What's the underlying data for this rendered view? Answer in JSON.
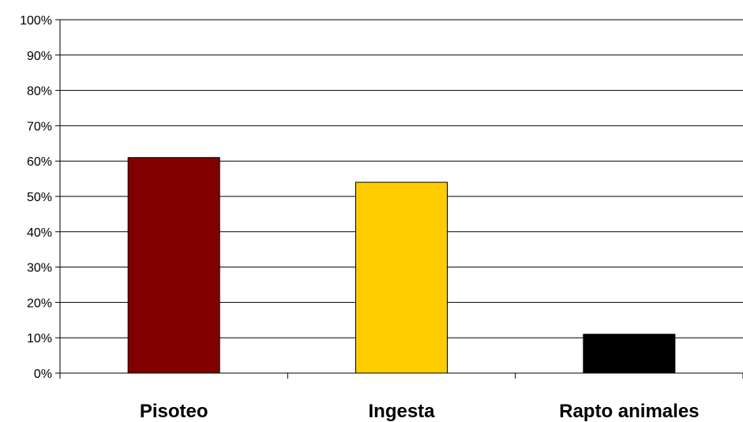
{
  "chart_data": {
    "type": "bar",
    "categories": [
      "Pisoteo",
      "Ingesta",
      "Rapto animales"
    ],
    "values": [
      61,
      54,
      11
    ],
    "colors": [
      "#800000",
      "#ffcc00",
      "#000000"
    ],
    "ylim": [
      0,
      100
    ],
    "yticks": [
      0,
      10,
      20,
      30,
      40,
      50,
      60,
      70,
      80,
      90,
      100
    ],
    "ytick_labels": [
      "0%",
      "10%",
      "20%",
      "30%",
      "40%",
      "50%",
      "60%",
      "70%",
      "80%",
      "90%",
      "100%"
    ],
    "grid": true,
    "legend": "none"
  }
}
